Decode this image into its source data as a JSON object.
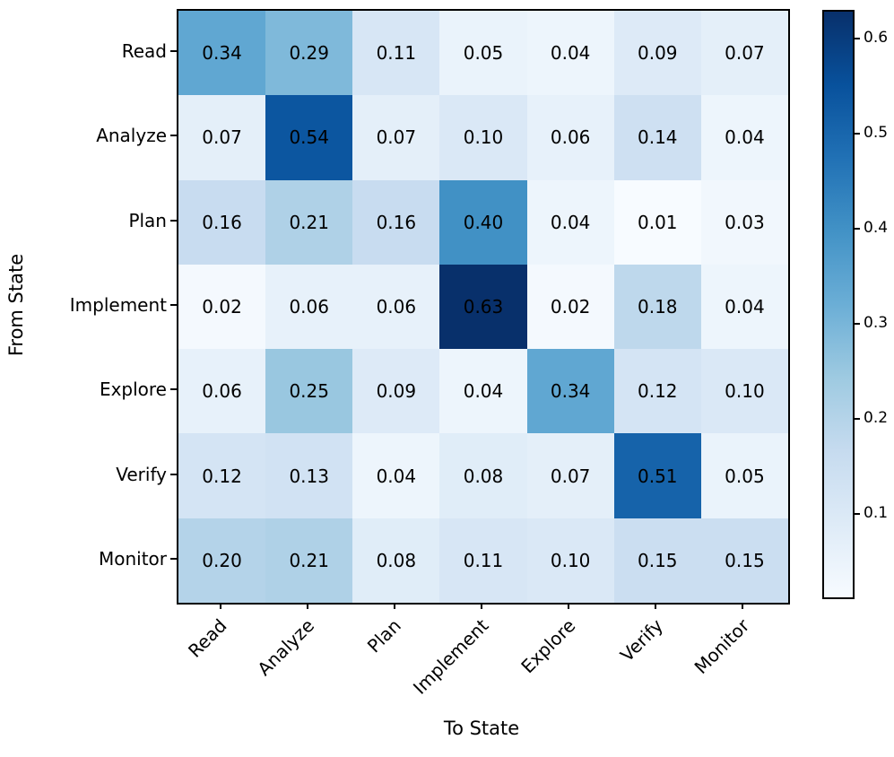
{
  "figure": {
    "background": "#ffffff",
    "border_color": "#000000"
  },
  "chart_data": {
    "type": "heatmap",
    "title": "",
    "xlabel": "To State",
    "ylabel": "From State",
    "categories": [
      "Read",
      "Analyze",
      "Plan",
      "Implement",
      "Explore",
      "Verify",
      "Monitor"
    ],
    "row_categories": [
      "Read",
      "Analyze",
      "Plan",
      "Implement",
      "Explore",
      "Verify",
      "Monitor"
    ],
    "matrix": [
      [
        0.34,
        0.29,
        0.11,
        0.05,
        0.04,
        0.09,
        0.07
      ],
      [
        0.07,
        0.54,
        0.07,
        0.1,
        0.06,
        0.14,
        0.04
      ],
      [
        0.16,
        0.21,
        0.16,
        0.4,
        0.04,
        0.01,
        0.03
      ],
      [
        0.02,
        0.06,
        0.06,
        0.63,
        0.02,
        0.18,
        0.04
      ],
      [
        0.06,
        0.25,
        0.09,
        0.04,
        0.34,
        0.12,
        0.1
      ],
      [
        0.12,
        0.13,
        0.04,
        0.08,
        0.07,
        0.51,
        0.05
      ],
      [
        0.2,
        0.21,
        0.08,
        0.11,
        0.1,
        0.15,
        0.15
      ]
    ],
    "value_decimals": 2,
    "annotation_color": "#000000",
    "colormap": "Blues",
    "colormap_stops": [
      {
        "pos": 0.0,
        "color": "#f7fbff"
      },
      {
        "pos": 0.125,
        "color": "#deebf7"
      },
      {
        "pos": 0.25,
        "color": "#c6dbef"
      },
      {
        "pos": 0.375,
        "color": "#9ecae1"
      },
      {
        "pos": 0.5,
        "color": "#6baed6"
      },
      {
        "pos": 0.625,
        "color": "#4292c6"
      },
      {
        "pos": 0.75,
        "color": "#2171b5"
      },
      {
        "pos": 0.875,
        "color": "#08519c"
      },
      {
        "pos": 1.0,
        "color": "#08306b"
      }
    ],
    "vmin": 0.01,
    "vmax": 0.63,
    "colorbar_ticks": [
      0.1,
      0.2,
      0.3,
      0.4,
      0.5,
      0.6
    ],
    "colorbar_tick_labels": [
      "0.1",
      "0.2",
      "0.3",
      "0.4",
      "0.5",
      "0.6"
    ],
    "legend_position": "right-colorbar",
    "grid": false,
    "x_tick_rotation_deg": 45
  }
}
